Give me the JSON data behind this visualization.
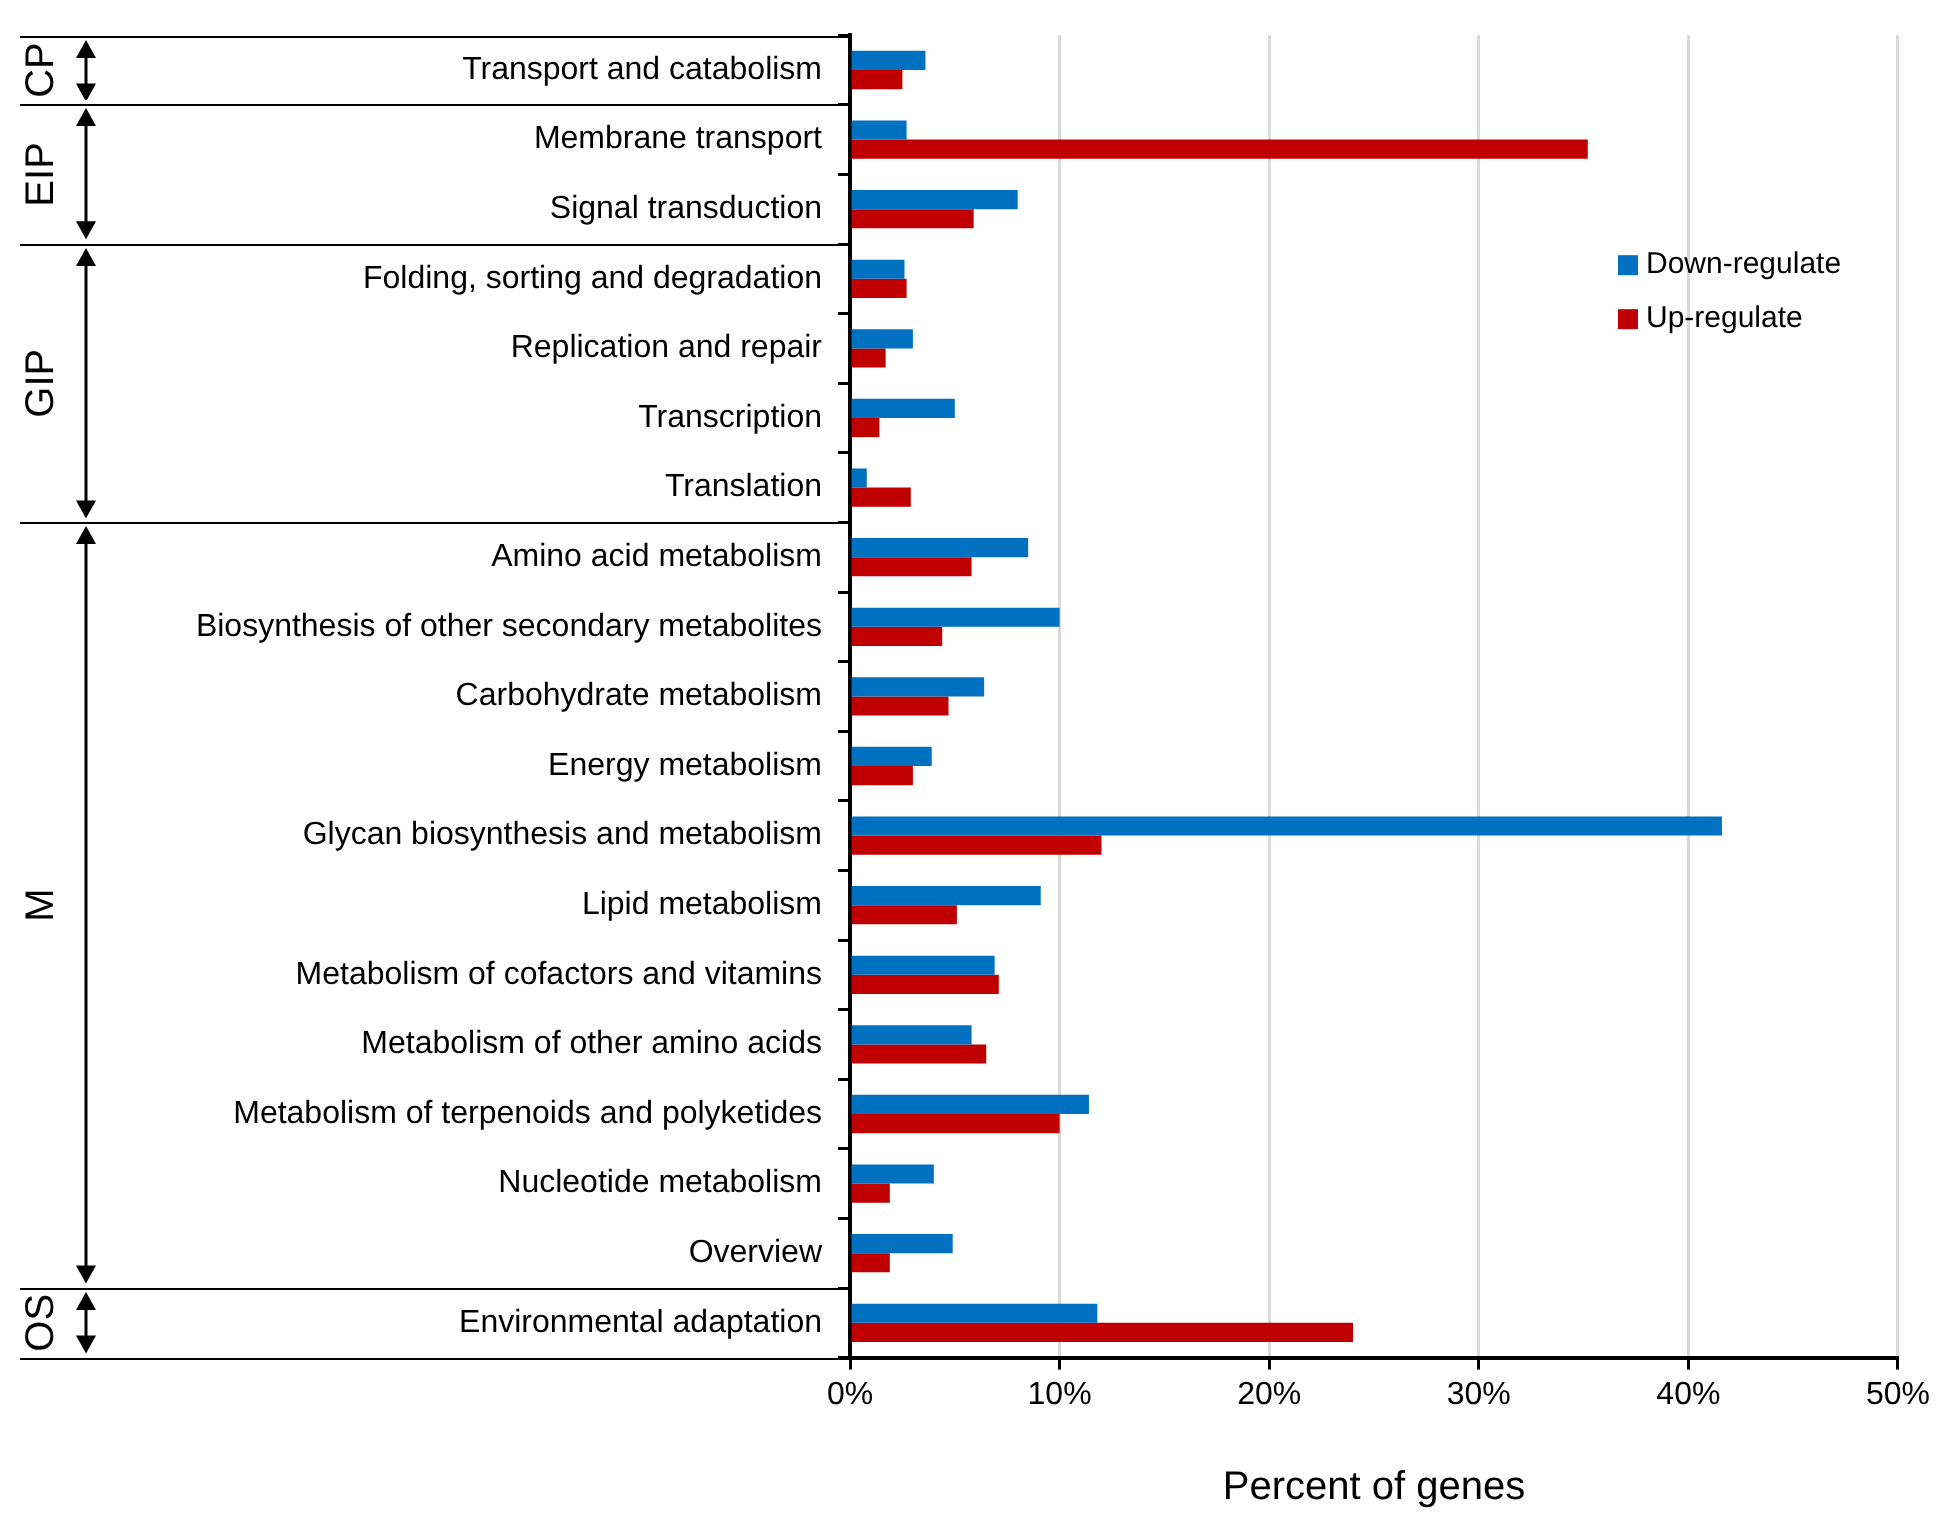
{
  "chart_data": {
    "type": "bar",
    "orientation": "horizontal",
    "xlabel": "Percent of genes",
    "categories": [
      "Transport and catabolism",
      "Membrane transport",
      "Signal transduction",
      "Folding, sorting and degradation",
      "Replication and repair",
      "Transcription",
      "Translation",
      "Amino acid metabolism",
      "Biosynthesis of other secondary metabolites",
      "Carbohydrate metabolism",
      "Energy metabolism",
      "Glycan biosynthesis and metabolism",
      "Lipid metabolism",
      "Metabolism of cofactors and vitamins",
      "Metabolism of other amino acids",
      "Metabolism of terpenoids and polyketides",
      "Nucleotide metabolism",
      "Overview",
      "Environmental adaptation"
    ],
    "series": [
      {
        "name": "Down-regulate",
        "color": "#0070c0",
        "values": [
          3.6,
          2.7,
          8.0,
          2.6,
          3.0,
          5.0,
          0.8,
          8.5,
          10.0,
          6.4,
          3.9,
          41.6,
          9.1,
          6.9,
          5.8,
          11.4,
          4.0,
          4.9,
          11.8
        ]
      },
      {
        "name": "Up-regulate",
        "color": "#c00000",
        "values": [
          2.5,
          35.2,
          5.9,
          2.7,
          1.7,
          1.4,
          2.9,
          5.8,
          4.4,
          4.7,
          3.0,
          12.0,
          5.1,
          7.1,
          6.5,
          10.0,
          1.9,
          1.9,
          24.0
        ]
      }
    ],
    "xlim": [
      0,
      50
    ],
    "xticks": [
      {
        "value": 0,
        "label": "0%"
      },
      {
        "value": 10,
        "label": "10%"
      },
      {
        "value": 20,
        "label": "20%"
      },
      {
        "value": 30,
        "label": "30%"
      },
      {
        "value": 40,
        "label": "40%"
      },
      {
        "value": 50,
        "label": "50%"
      }
    ],
    "grid": "x",
    "legend": "top right",
    "annotations": [
      "CP",
      "EIP",
      "GIP",
      "M",
      "OS"
    ]
  }
}
